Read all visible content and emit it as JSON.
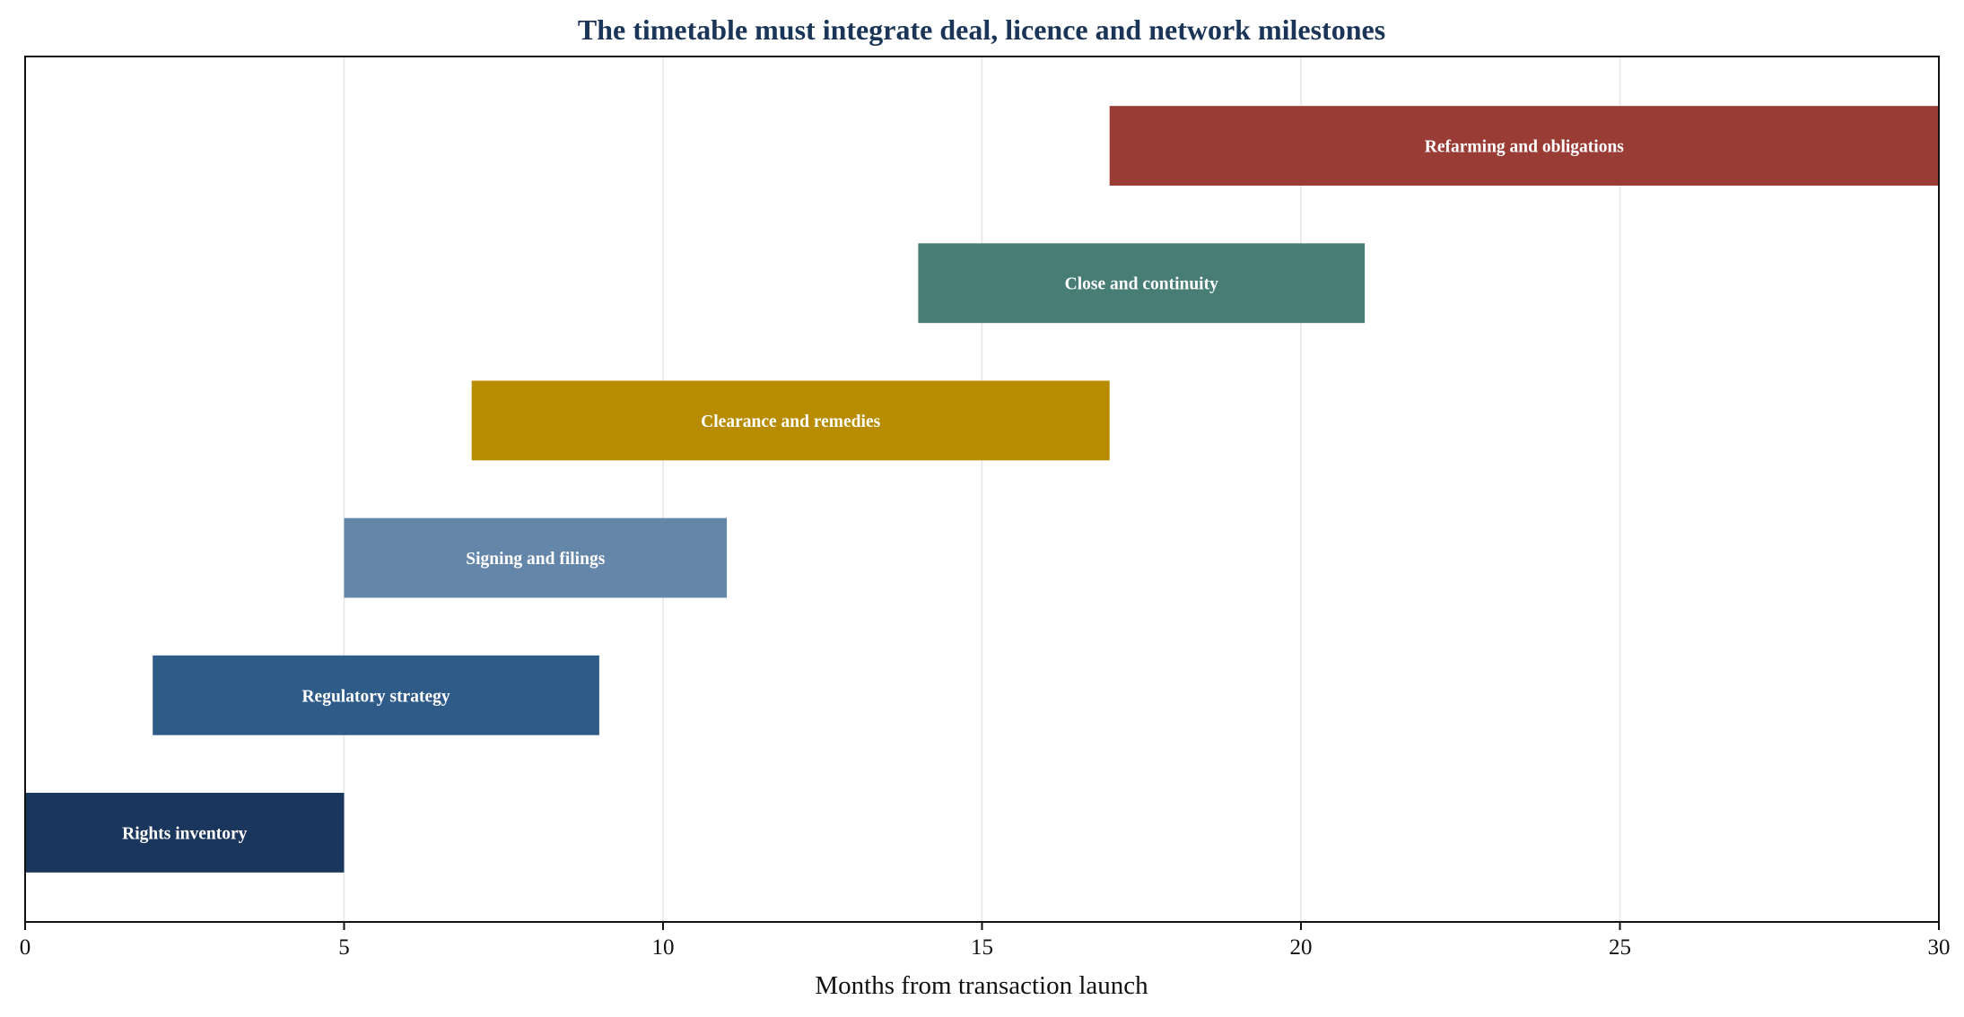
{
  "chart_data": {
    "type": "bar",
    "orientation": "horizontal",
    "chart_style": "gantt",
    "title": "The timetable must integrate deal, licence and network milestones",
    "xlabel": "Months from transaction launch",
    "ylabel": "",
    "xlim": [
      0,
      30
    ],
    "xticks": [
      0,
      5,
      10,
      15,
      20,
      25,
      30
    ],
    "grid": "vertical",
    "legend": "none",
    "title_color": "#1a3558",
    "tasks": [
      {
        "label": "Rights inventory",
        "start": 0,
        "end": 5,
        "color": "#1b365d"
      },
      {
        "label": "Regulatory strategy",
        "start": 2,
        "end": 9,
        "color": "#2f5b88"
      },
      {
        "label": "Signing and filings",
        "start": 5,
        "end": 11,
        "color": "#6486a8"
      },
      {
        "label": "Clearance and remedies",
        "start": 7,
        "end": 17,
        "color": "#b78c00"
      },
      {
        "label": "Close and continuity",
        "start": 14,
        "end": 21,
        "color": "#487d75"
      },
      {
        "label": "Refarming and obligations",
        "start": 17,
        "end": 30,
        "color": "#9a3c36"
      }
    ]
  }
}
